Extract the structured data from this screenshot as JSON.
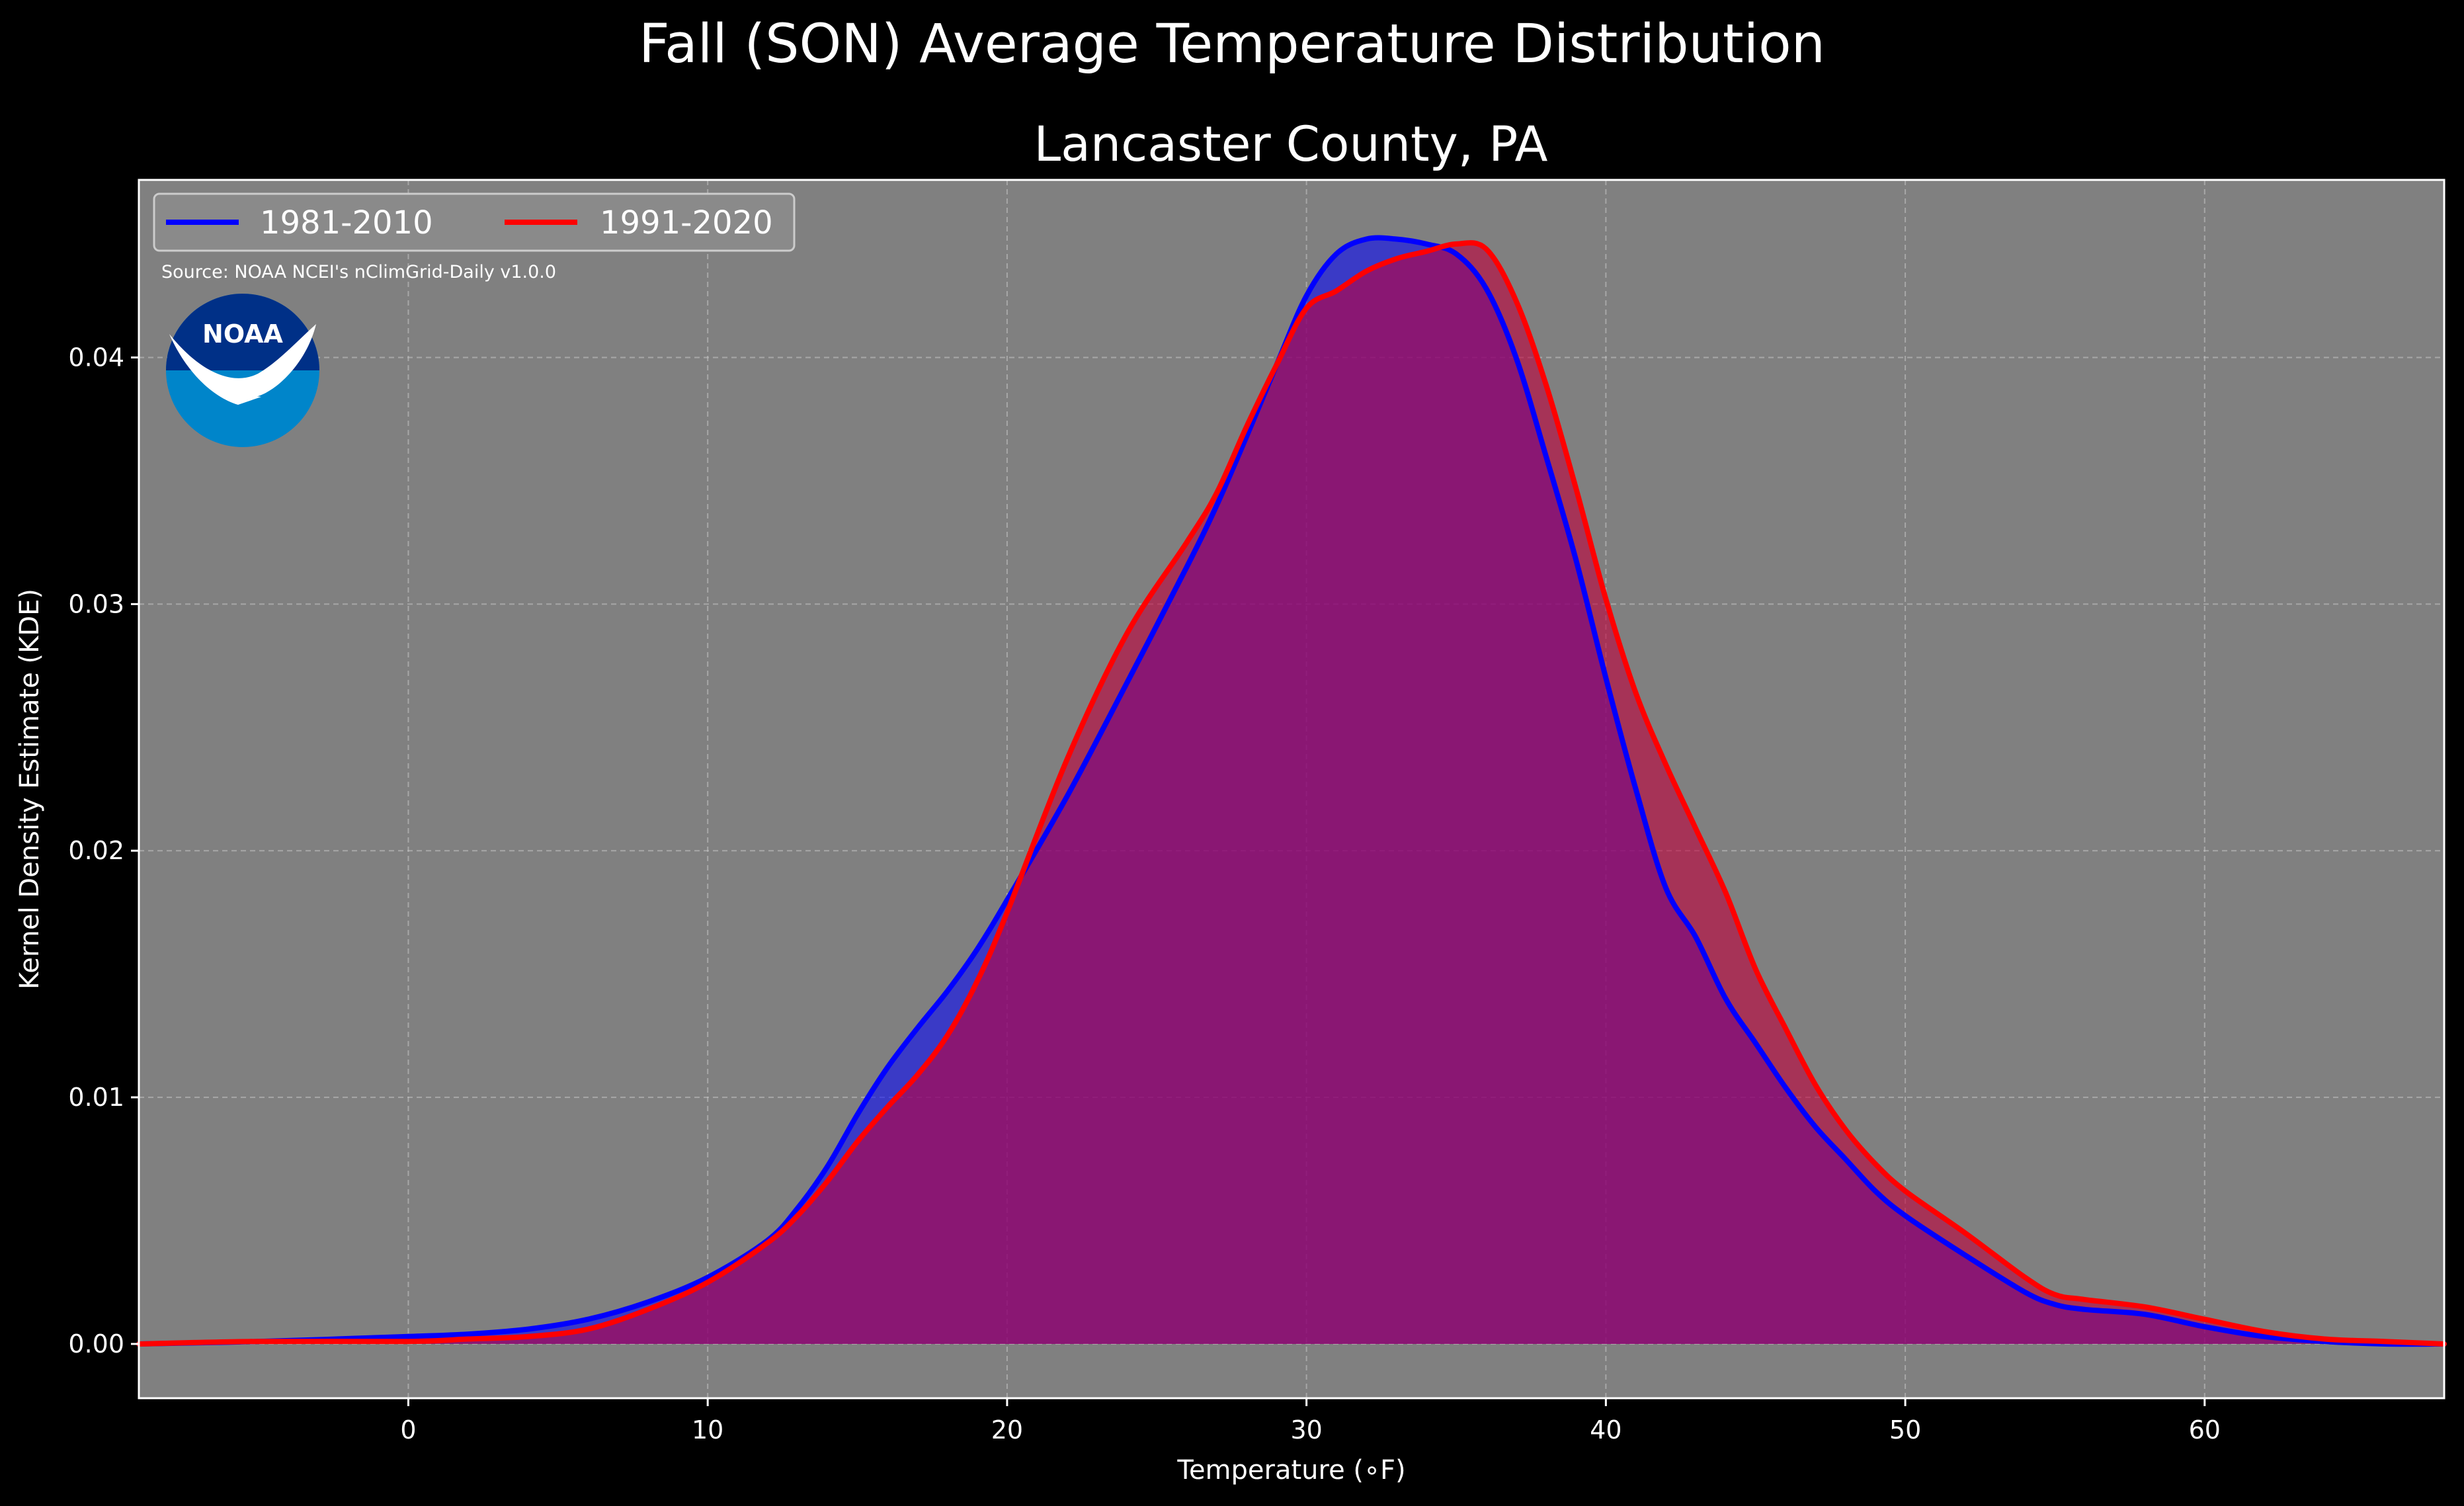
{
  "chart_data": {
    "type": "area",
    "title": "Fall (SON) Average Temperature Distribution",
    "subtitle": "Lancaster County, PA",
    "xlabel": "Temperature (∘F)",
    "ylabel": "Kernel Density Estimate (KDE)",
    "xlim": [
      -9,
      68
    ],
    "ylim": [
      -0.0022,
      0.0472
    ],
    "xticks": [
      0,
      10,
      20,
      30,
      40,
      50,
      60
    ],
    "yticks": [
      0.0,
      0.01,
      0.02,
      0.03,
      0.04
    ],
    "ytick_labels": [
      "0.00",
      "0.01",
      "0.02",
      "0.03",
      "0.04"
    ],
    "grid": true,
    "legend_position": "top-left",
    "annotation": "Source: NOAA NCEI's nClimGrid-Daily v1.0.0",
    "logo_text": "NOAA",
    "series": [
      {
        "name": "1981-2010",
        "color": "#0000ff",
        "fill_color": "#0000ff",
        "x": [
          -9,
          -5,
          0,
          2,
          4,
          6,
          8,
          10,
          12,
          13,
          14,
          15,
          16,
          17,
          18,
          19,
          20,
          22,
          24,
          26,
          27,
          28,
          29,
          30,
          31,
          32,
          33,
          34,
          35,
          36,
          37,
          38,
          39,
          40,
          41,
          42,
          43,
          44,
          45,
          46,
          47,
          48,
          49,
          50,
          52,
          54,
          55,
          56,
          58,
          60,
          62,
          64,
          66,
          68
        ],
        "y": [
          0.0,
          0.0001,
          0.0003,
          0.0004,
          0.0006,
          0.001,
          0.0017,
          0.0027,
          0.0042,
          0.0055,
          0.0072,
          0.0093,
          0.0112,
          0.0128,
          0.0143,
          0.016,
          0.018,
          0.0222,
          0.0268,
          0.0315,
          0.034,
          0.0368,
          0.0397,
          0.0425,
          0.0442,
          0.0448,
          0.0448,
          0.0446,
          0.0442,
          0.0428,
          0.04,
          0.036,
          0.0318,
          0.027,
          0.0225,
          0.0185,
          0.0165,
          0.014,
          0.0122,
          0.0104,
          0.0088,
          0.0075,
          0.0062,
          0.0052,
          0.0036,
          0.0021,
          0.0016,
          0.0014,
          0.0012,
          0.0007,
          0.0003,
          0.0001,
          0.0,
          0.0
        ]
      },
      {
        "name": "1991-2020",
        "color": "#ff0000",
        "fill_color": "#c0003c",
        "x": [
          -9,
          -5,
          0,
          2,
          4,
          6,
          8,
          10,
          12,
          13,
          14,
          15,
          16,
          17,
          18,
          19,
          20,
          22,
          24,
          26,
          27,
          28,
          29,
          30,
          31,
          32,
          33,
          34,
          35,
          36,
          37,
          38,
          39,
          40,
          41,
          42,
          43,
          44,
          45,
          46,
          47,
          48,
          49,
          50,
          52,
          54,
          55,
          56,
          58,
          60,
          62,
          64,
          66,
          68
        ],
        "y": [
          0.0,
          0.0001,
          0.0001,
          0.0002,
          0.0003,
          0.0006,
          0.0014,
          0.0025,
          0.0041,
          0.0052,
          0.0066,
          0.0082,
          0.0096,
          0.0109,
          0.0125,
          0.0147,
          0.0175,
          0.0237,
          0.0288,
          0.0325,
          0.0345,
          0.0372,
          0.0397,
          0.042,
          0.0427,
          0.0435,
          0.044,
          0.0443,
          0.0446,
          0.0444,
          0.0423,
          0.0389,
          0.0347,
          0.0302,
          0.0264,
          0.0235,
          0.0209,
          0.0183,
          0.0152,
          0.0128,
          0.0105,
          0.0087,
          0.0073,
          0.0062,
          0.0045,
          0.0027,
          0.002,
          0.0018,
          0.0015,
          0.001,
          0.0005,
          0.0002,
          0.0001,
          0.0
        ]
      }
    ]
  },
  "colors": {
    "page_background": "#000000",
    "plot_background": "#808080",
    "grid": "#c8c8c8",
    "text": "#ffffff",
    "logo_outer": "#0085ca",
    "logo_inner": "#003087"
  }
}
